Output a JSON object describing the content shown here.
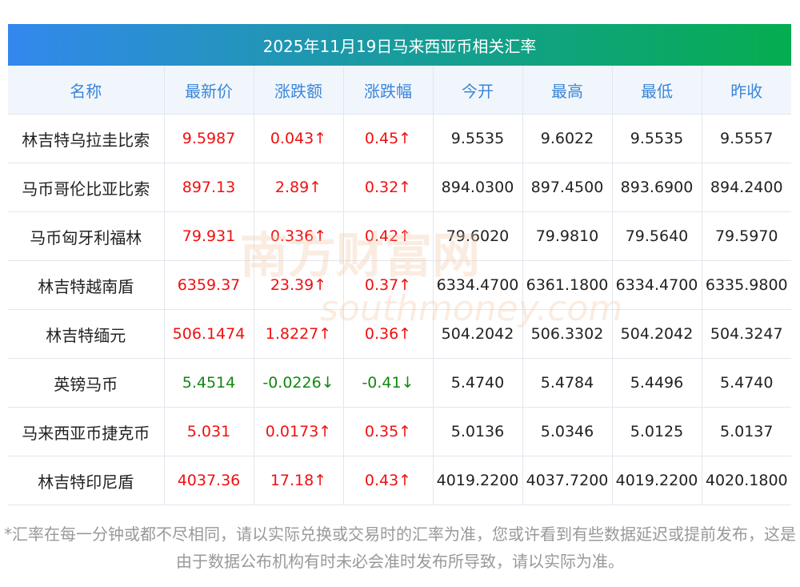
{
  "title": "2025年11月19日马来西亚币相关汇率",
  "columns": [
    "名称",
    "最新价",
    "涨跌额",
    "涨跌幅",
    "今开",
    "最高",
    "最低",
    "昨收"
  ],
  "rows": [
    {
      "name": "林吉特乌拉圭比索",
      "latest": "9.5987",
      "change": "0.043↑",
      "pct": "0.45↑",
      "open": "9.5535",
      "high": "9.6022",
      "low": "9.5535",
      "prev": "9.5557",
      "dir": "up"
    },
    {
      "name": "马币哥伦比亚比索",
      "latest": "897.13",
      "change": "2.89↑",
      "pct": "0.32↑",
      "open": "894.0300",
      "high": "897.4500",
      "low": "893.6900",
      "prev": "894.2400",
      "dir": "up"
    },
    {
      "name": "马币匈牙利福林",
      "latest": "79.931",
      "change": "0.336↑",
      "pct": "0.42↑",
      "open": "79.6020",
      "high": "79.9810",
      "low": "79.5640",
      "prev": "79.5970",
      "dir": "up"
    },
    {
      "name": "林吉特越南盾",
      "latest": "6359.37",
      "change": "23.39↑",
      "pct": "0.37↑",
      "open": "6334.4700",
      "high": "6361.1800",
      "low": "6334.4700",
      "prev": "6335.9800",
      "dir": "up"
    },
    {
      "name": "林吉特缅元",
      "latest": "506.1474",
      "change": "1.8227↑",
      "pct": "0.36↑",
      "open": "504.2042",
      "high": "506.3302",
      "low": "504.2042",
      "prev": "504.3247",
      "dir": "up"
    },
    {
      "name": "英镑马币",
      "latest": "5.4514",
      "change": "-0.0226↓",
      "pct": "-0.41↓",
      "open": "5.4740",
      "high": "5.4784",
      "low": "5.4496",
      "prev": "5.4740",
      "dir": "down"
    },
    {
      "name": "马来西亚币捷克币",
      "latest": "5.031",
      "change": "0.0173↑",
      "pct": "0.35↑",
      "open": "5.0136",
      "high": "5.0346",
      "low": "5.0125",
      "prev": "5.0137",
      "dir": "up"
    },
    {
      "name": "林吉特印尼盾",
      "latest": "4037.36",
      "change": "17.18↑",
      "pct": "0.43↑",
      "open": "4019.2200",
      "high": "4037.7200",
      "low": "4019.2200",
      "prev": "4020.1800",
      "dir": "up"
    }
  ],
  "watermark": {
    "cn": "南方财富网",
    "en": "southmoney.com"
  },
  "note": "*汇率在每一分钟或都不尽相同，请以实际兑换或交易时的汇率为准，您或许看到有些数据延迟或提前发布，这是由于数据公布机构有时未必会准时发布所导致，请以实际为准。",
  "colors": {
    "up": "#f01010",
    "down": "#118811",
    "header_text": "#3a86d8"
  }
}
